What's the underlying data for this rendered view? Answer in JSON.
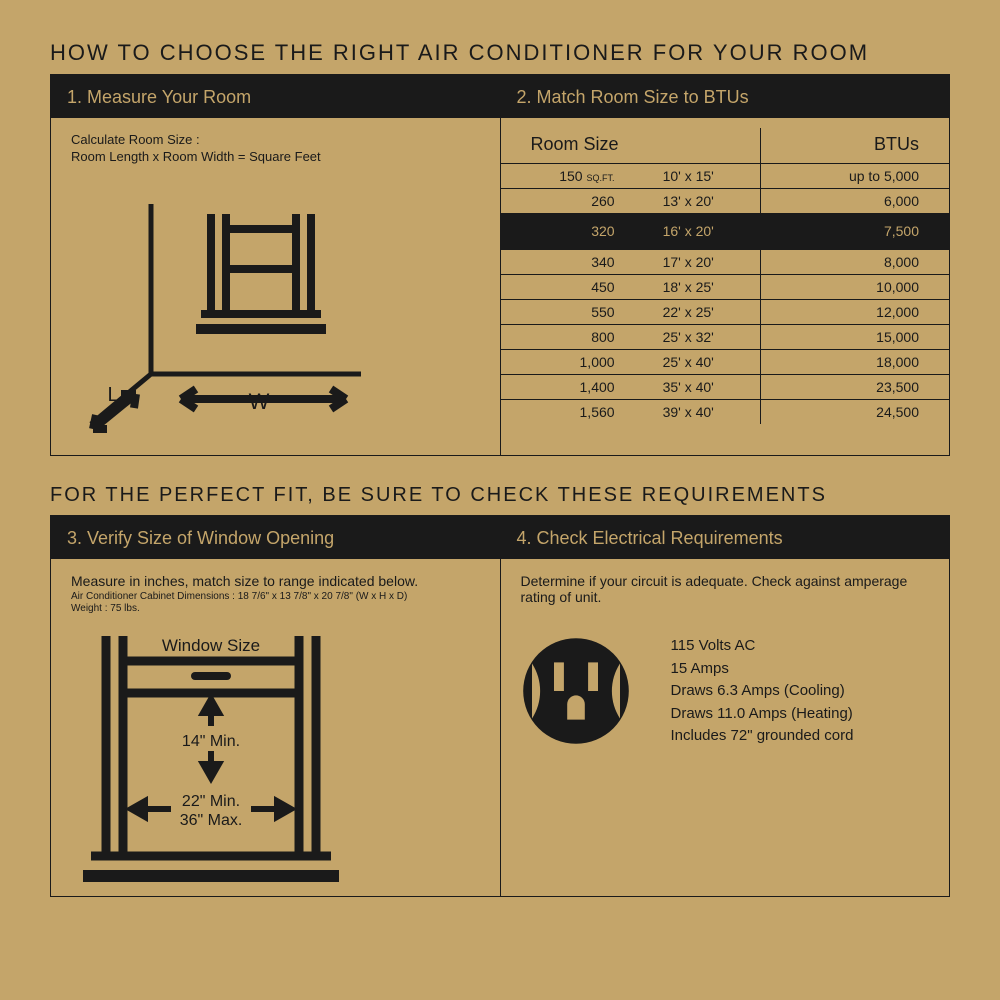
{
  "colors": {
    "bg": "#c4a56a",
    "ink": "#1a1a1a"
  },
  "title": "HOW TO CHOOSE THE RIGHT AIR CONDITIONER FOR YOUR ROOM",
  "section1": {
    "header": "1. Measure Your Room",
    "calc_label": "Calculate Room Size :",
    "calc_formula": "Room Length x Room Width = Square Feet",
    "diagram": {
      "L": "L",
      "W": "W"
    }
  },
  "section2": {
    "header": "2. Match Room Size to BTUs",
    "col_room": "Room Size",
    "col_btu": "BTUs",
    "sqft": "SQ.FT.",
    "rows": [
      {
        "size": "150",
        "dim": "10' x 15'",
        "btu": "up to 5,000",
        "hl": false
      },
      {
        "size": "260",
        "dim": "13' x 20'",
        "btu": "6,000",
        "hl": false
      },
      {
        "size": "320",
        "dim": "16' x 20'",
        "btu": "7,500",
        "hl": true
      },
      {
        "size": "340",
        "dim": "17' x 20'",
        "btu": "8,000",
        "hl": false
      },
      {
        "size": "450",
        "dim": "18' x 25'",
        "btu": "10,000",
        "hl": false
      },
      {
        "size": "550",
        "dim": "22' x 25'",
        "btu": "12,000",
        "hl": false
      },
      {
        "size": "800",
        "dim": "25' x 32'",
        "btu": "15,000",
        "hl": false
      },
      {
        "size": "1,000",
        "dim": "25' x 40'",
        "btu": "18,000",
        "hl": false
      },
      {
        "size": "1,400",
        "dim": "35' x 40'",
        "btu": "23,500",
        "hl": false
      },
      {
        "size": "1,560",
        "dim": "39' x 40'",
        "btu": "24,500",
        "hl": false
      }
    ]
  },
  "subtitle": "FOR THE PERFECT FIT, BE SURE TO CHECK THESE REQUIREMENTS",
  "section3": {
    "header": "3. Verify Size of Window Opening",
    "line1": "Measure in inches, match size to range indicated below.",
    "line2": "Air Conditioner Cabinet Dimensions : 18 7/6\" x 13 7/8\" x 20 7/8\" (W x H x D)",
    "line3": "Weight : 75 lbs.",
    "diagram": {
      "title": "Window Size",
      "h": "14\" Min.",
      "wmin": "22\" Min.",
      "wmax": "36\" Max."
    }
  },
  "section4": {
    "header": "4. Check Electrical Requirements",
    "line1": "Determine if your circuit is adequate. Check against amperage rating of unit.",
    "specs": [
      "115 Volts AC",
      "15 Amps",
      "Draws 6.3 Amps (Cooling)",
      "Draws 11.0 Amps (Heating)",
      "Includes 72\" grounded cord"
    ]
  }
}
